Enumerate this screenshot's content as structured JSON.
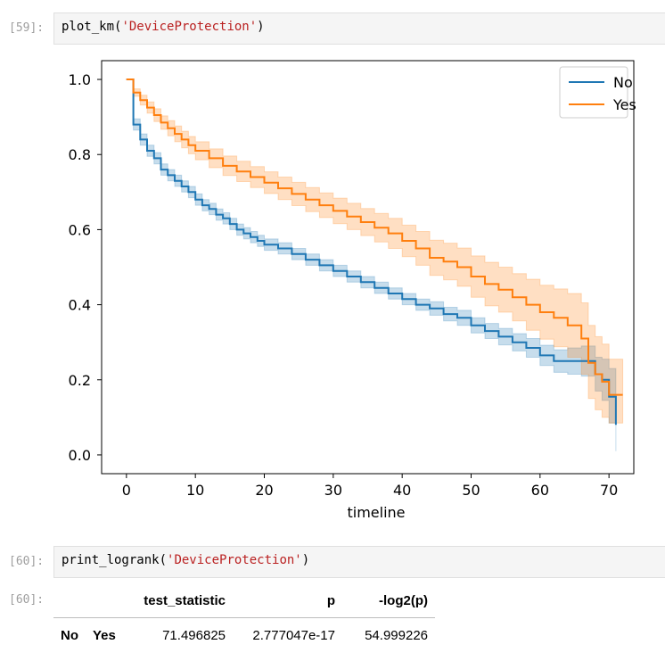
{
  "cell59": {
    "prompt": "[59]:",
    "code_func": "plot_km(",
    "code_arg": "'DeviceProtection'",
    "code_end": ")"
  },
  "cell60": {
    "prompt": "[60]:",
    "code_func": "print_logrank(",
    "code_arg": "'DeviceProtection'",
    "code_end": ")",
    "out_prompt": "[60]:"
  },
  "logrank_table": {
    "columns": [
      "test_statistic",
      "p",
      "-log2(p)"
    ],
    "row_index": [
      "No",
      "Yes"
    ],
    "values": [
      "71.496825",
      "2.777047e-17",
      "54.999226"
    ]
  },
  "chart_data": {
    "type": "line",
    "xlabel": "timeline",
    "ylabel": "",
    "xlim": [
      -3.6,
      73.6
    ],
    "ylim": [
      -0.05,
      1.05
    ],
    "xticks": [
      0,
      10,
      20,
      30,
      40,
      50,
      60,
      70
    ],
    "yticks": [
      0.0,
      0.2,
      0.4,
      0.6,
      0.8,
      1.0
    ],
    "xtick_labels": [
      "0",
      "10",
      "20",
      "30",
      "40",
      "50",
      "60",
      "70"
    ],
    "ytick_labels": [
      "0.0",
      "0.2",
      "0.4",
      "0.6",
      "0.8",
      "1.0"
    ],
    "legend_placement": "top-right",
    "series": [
      {
        "name": "No",
        "color": "#1f77b4",
        "step": "post",
        "x": [
          0,
          1,
          2,
          3,
          4,
          5,
          6,
          7,
          8,
          9,
          10,
          11,
          12,
          13,
          14,
          15,
          16,
          17,
          18,
          19,
          20,
          22,
          24,
          26,
          28,
          30,
          32,
          34,
          36,
          38,
          40,
          42,
          44,
          46,
          48,
          50,
          52,
          54,
          56,
          58,
          60,
          62,
          64,
          66,
          68,
          69,
          70,
          71
        ],
        "y": [
          1.0,
          0.88,
          0.84,
          0.81,
          0.79,
          0.76,
          0.745,
          0.73,
          0.715,
          0.7,
          0.68,
          0.665,
          0.655,
          0.64,
          0.63,
          0.615,
          0.6,
          0.59,
          0.58,
          0.57,
          0.56,
          0.55,
          0.535,
          0.52,
          0.505,
          0.49,
          0.475,
          0.46,
          0.445,
          0.43,
          0.415,
          0.4,
          0.39,
          0.375,
          0.365,
          0.345,
          0.33,
          0.315,
          0.3,
          0.285,
          0.265,
          0.25,
          0.25,
          0.25,
          0.215,
          0.2,
          0.155,
          0.08
        ],
        "ci_lower": [
          1.0,
          0.865,
          0.825,
          0.795,
          0.775,
          0.745,
          0.73,
          0.715,
          0.7,
          0.685,
          0.665,
          0.65,
          0.64,
          0.625,
          0.615,
          0.6,
          0.585,
          0.575,
          0.565,
          0.555,
          0.545,
          0.535,
          0.52,
          0.505,
          0.49,
          0.475,
          0.46,
          0.445,
          0.43,
          0.415,
          0.4,
          0.385,
          0.372,
          0.357,
          0.345,
          0.325,
          0.31,
          0.293,
          0.277,
          0.26,
          0.238,
          0.22,
          0.215,
          0.21,
          0.17,
          0.145,
          0.085,
          0.01
        ],
        "ci_upper": [
          1.0,
          0.895,
          0.855,
          0.825,
          0.805,
          0.775,
          0.76,
          0.745,
          0.73,
          0.715,
          0.695,
          0.68,
          0.67,
          0.655,
          0.645,
          0.63,
          0.615,
          0.605,
          0.595,
          0.585,
          0.575,
          0.565,
          0.55,
          0.535,
          0.52,
          0.505,
          0.49,
          0.475,
          0.46,
          0.445,
          0.43,
          0.415,
          0.408,
          0.393,
          0.385,
          0.365,
          0.35,
          0.337,
          0.323,
          0.31,
          0.292,
          0.28,
          0.285,
          0.29,
          0.26,
          0.255,
          0.23,
          0.16
        ]
      },
      {
        "name": "Yes",
        "color": "#ff7f0e",
        "step": "post",
        "x": [
          0,
          1,
          2,
          3,
          4,
          5,
          6,
          7,
          8,
          9,
          10,
          12,
          14,
          16,
          18,
          20,
          22,
          24,
          26,
          28,
          30,
          32,
          34,
          36,
          38,
          40,
          42,
          44,
          46,
          48,
          50,
          52,
          54,
          56,
          58,
          60,
          62,
          64,
          66,
          67,
          68,
          69,
          70,
          72
        ],
        "y": [
          1.0,
          0.965,
          0.945,
          0.925,
          0.905,
          0.885,
          0.87,
          0.855,
          0.84,
          0.825,
          0.81,
          0.79,
          0.77,
          0.755,
          0.74,
          0.725,
          0.71,
          0.695,
          0.68,
          0.665,
          0.65,
          0.635,
          0.62,
          0.605,
          0.59,
          0.57,
          0.55,
          0.525,
          0.515,
          0.5,
          0.475,
          0.455,
          0.44,
          0.42,
          0.4,
          0.38,
          0.365,
          0.345,
          0.31,
          0.245,
          0.215,
          0.195,
          0.16,
          0.16
        ],
        "ci_lower": [
          1.0,
          0.955,
          0.932,
          0.91,
          0.888,
          0.867,
          0.85,
          0.834,
          0.818,
          0.802,
          0.786,
          0.765,
          0.744,
          0.728,
          0.712,
          0.696,
          0.68,
          0.664,
          0.648,
          0.632,
          0.616,
          0.6,
          0.584,
          0.567,
          0.55,
          0.528,
          0.505,
          0.478,
          0.466,
          0.449,
          0.42,
          0.397,
          0.38,
          0.357,
          0.332,
          0.308,
          0.288,
          0.26,
          0.215,
          0.15,
          0.12,
          0.1,
          0.085,
          0.085
        ],
        "ci_upper": [
          1.0,
          0.975,
          0.958,
          0.94,
          0.922,
          0.903,
          0.89,
          0.876,
          0.862,
          0.848,
          0.834,
          0.815,
          0.796,
          0.782,
          0.768,
          0.754,
          0.74,
          0.726,
          0.712,
          0.698,
          0.684,
          0.67,
          0.656,
          0.643,
          0.63,
          0.612,
          0.595,
          0.572,
          0.564,
          0.551,
          0.53,
          0.513,
          0.5,
          0.483,
          0.468,
          0.452,
          0.442,
          0.43,
          0.405,
          0.345,
          0.315,
          0.295,
          0.255,
          0.255
        ]
      }
    ]
  }
}
